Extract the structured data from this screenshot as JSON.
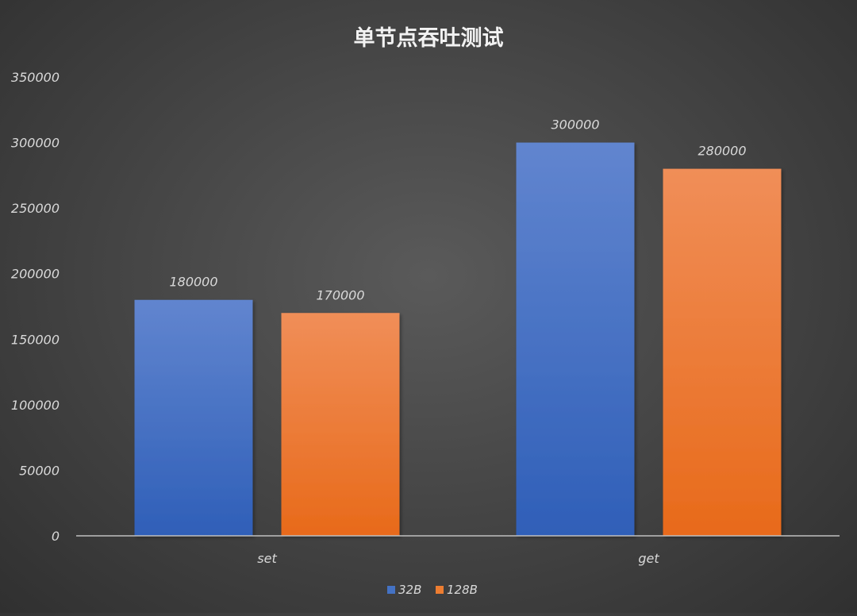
{
  "chart_data": {
    "type": "bar",
    "title": "单节点吞吐测试",
    "categories": [
      "set",
      "get"
    ],
    "series": [
      {
        "name": "32B",
        "values": [
          180000,
          300000
        ],
        "color": "#4472c4"
      },
      {
        "name": "128B",
        "values": [
          170000,
          280000
        ],
        "color": "#ed7d31"
      }
    ],
    "yticks": [
      "0",
      "50000",
      "100000",
      "150000",
      "200000",
      "250000",
      "300000",
      "350000"
    ],
    "ylim": [
      0,
      350000
    ],
    "data_labels": true,
    "grid": false,
    "legend": "bottom"
  }
}
